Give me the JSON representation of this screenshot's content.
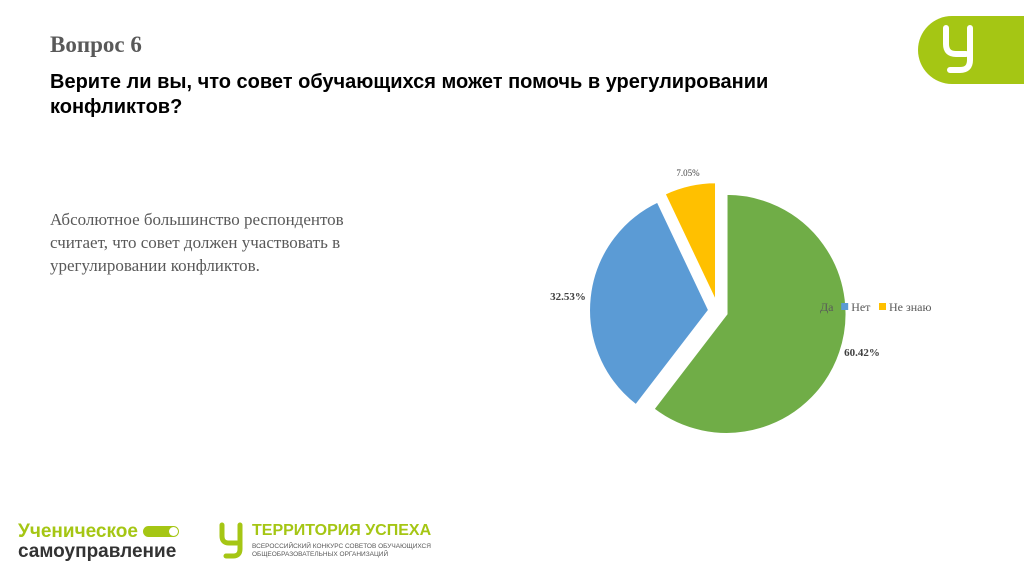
{
  "slide": {
    "label": "Вопрос 6",
    "question": "Верите ли вы, что совет обучающихся может помочь в урегулировании конфликтов?",
    "summary": "Абсолютное большинство респондентов считает, что совет должен участвовать в урегулировании конфликтов."
  },
  "footer": {
    "logo1_first": "Ученическое",
    "logo1_second": "самоуправление",
    "logo2_title": "ТЕРРИТОРИЯ УСПЕХА",
    "logo2_sub1": "ВСЕРОССИЙСКИЙ КОНКУРС СОВЕТОВ ОБУЧАЮЩИХСЯ",
    "logo2_sub2": "ОБЩЕОБРАЗОВАТЕЛЬНЫХ ОРГАНИЗАЦИЙ"
  },
  "colors": {
    "brand_green": "#a5c614",
    "da": "#70ad47",
    "net": "#5b9bd5",
    "ne_znayu": "#ffc000"
  },
  "chart_data": {
    "type": "pie",
    "title": "",
    "categories": [
      "Да",
      "Нет",
      "Не знаю"
    ],
    "values": [
      60.42,
      32.53,
      7.05
    ],
    "labels": [
      "60.42%",
      "32.53%",
      "7.05%"
    ],
    "colors": [
      "#70ad47",
      "#5b9bd5",
      "#ffc000"
    ],
    "exploded": true,
    "legend_position": "right"
  }
}
